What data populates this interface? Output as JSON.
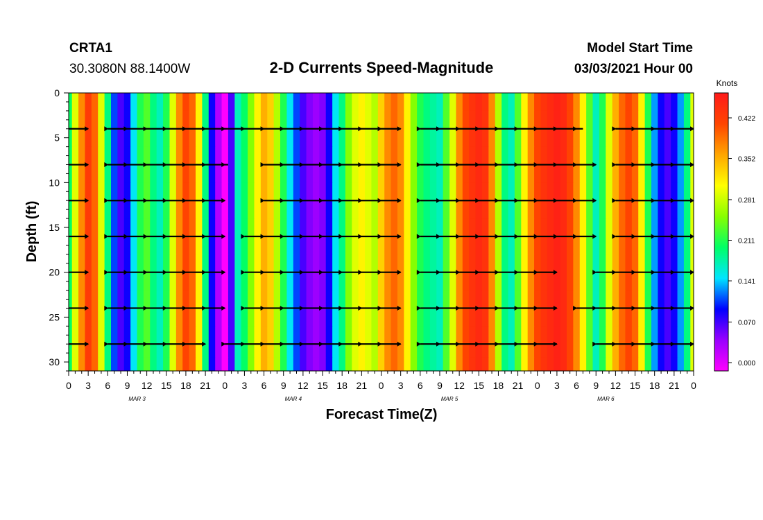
{
  "header": {
    "station": "CRTA1",
    "coords": "30.3080N 88.1400W",
    "title": "2-D Currents Speed-Magnitude",
    "model_label": "Model Start Time",
    "model_time": "03/03/2021 Hour 00"
  },
  "chart_data": {
    "type": "heatmap",
    "title": "2-D Currents Speed-Magnitude",
    "xlabel": "Forecast Time(Z)",
    "ylabel": "Depth (ft)",
    "x_tick_labels": [
      "0",
      "3",
      "6",
      "9",
      "12",
      "15",
      "18",
      "21",
      "0",
      "3",
      "6",
      "9",
      "12",
      "15",
      "18",
      "21",
      "0",
      "3",
      "6",
      "9",
      "12",
      "15",
      "18",
      "21",
      "0",
      "3",
      "6",
      "9",
      "12",
      "15",
      "18",
      "21",
      "0"
    ],
    "x_range_hours": [
      0,
      96
    ],
    "date_labels": [
      "MAR 3",
      "MAR 4",
      "MAR 5",
      "MAR 6"
    ],
    "y_ticks": [
      0,
      5,
      10,
      15,
      20,
      25,
      30
    ],
    "y_range": [
      0,
      31
    ],
    "y_inverted": true,
    "colorbar": {
      "unit": "Knots",
      "tick_labels": [
        "0.422",
        "0.352",
        "0.281",
        "0.211",
        "0.141",
        "0.070",
        "0.000"
      ],
      "range": [
        0,
        0.47
      ],
      "colors": [
        "#ff00ff",
        "#9900ff",
        "#0000ff",
        "#00e5ff",
        "#00ff66",
        "#88ff00",
        "#ffff00",
        "#ffa500",
        "#ff4500",
        "#ff1a1a"
      ]
    },
    "vector_depths_ft": [
      4,
      8,
      12,
      16,
      20,
      24,
      28
    ],
    "speed_field_knots": {
      "times_hr": [
        0,
        1,
        2,
        3,
        4,
        5,
        6,
        7,
        8,
        9,
        10,
        11,
        12,
        13,
        14,
        15,
        16,
        17,
        18,
        19,
        20,
        21,
        22,
        23,
        24,
        25,
        26,
        27,
        28,
        29,
        30,
        31,
        32,
        33,
        34,
        35,
        36,
        37,
        38,
        39,
        40,
        41,
        42,
        43,
        44,
        45,
        46,
        47,
        48,
        49,
        50,
        51,
        52,
        53,
        54,
        55,
        56,
        57,
        58,
        59,
        60,
        61,
        62,
        63,
        64,
        65,
        66,
        67,
        68,
        69,
        70,
        71,
        72,
        73,
        74,
        75,
        76,
        77,
        78,
        79,
        80,
        81,
        82,
        83,
        84,
        85,
        86,
        87,
        88,
        89,
        90,
        91,
        92,
        93,
        94,
        95,
        96
      ],
      "depths_ft": [
        0,
        4,
        8,
        12,
        16,
        20,
        24,
        28,
        31
      ],
      "rows": [
        [
          0.21,
          0.3,
          0.38,
          0.43,
          0.4,
          0.3,
          0.2,
          0.12,
          0.08,
          0.1,
          0.16,
          0.22,
          0.24,
          0.2,
          0.18,
          0.22,
          0.3,
          0.38,
          0.42,
          0.4,
          0.32,
          0.2,
          0.1,
          0.04,
          0.0,
          0.08,
          0.18,
          0.21,
          0.26,
          0.32,
          0.36,
          0.34,
          0.28,
          0.22,
          0.16,
          0.12,
          0.08,
          0.06,
          0.05,
          0.06,
          0.1,
          0.16,
          0.2,
          0.26,
          0.3,
          0.32,
          0.3,
          0.28,
          0.34,
          0.38,
          0.4,
          0.38,
          0.32,
          0.26,
          0.22,
          0.2,
          0.19,
          0.18,
          0.24,
          0.3,
          0.38,
          0.42,
          0.44,
          0.45,
          0.44,
          0.38,
          0.28,
          0.2,
          0.18,
          0.24,
          0.32,
          0.38,
          0.42,
          0.44,
          0.45,
          0.46,
          0.45,
          0.42,
          0.38,
          0.32,
          0.24,
          0.18,
          0.22,
          0.3,
          0.36,
          0.4,
          0.42,
          0.4,
          0.32,
          0.22,
          0.14,
          0.1,
          0.08,
          0.1,
          0.14,
          0.2,
          0.3
        ],
        [
          0.21,
          0.3,
          0.38,
          0.43,
          0.4,
          0.3,
          0.2,
          0.12,
          0.08,
          0.1,
          0.16,
          0.22,
          0.24,
          0.2,
          0.18,
          0.22,
          0.3,
          0.38,
          0.42,
          0.4,
          0.32,
          0.2,
          0.1,
          0.04,
          0.0,
          0.08,
          0.18,
          0.21,
          0.26,
          0.32,
          0.36,
          0.34,
          0.28,
          0.22,
          0.16,
          0.12,
          0.08,
          0.06,
          0.05,
          0.06,
          0.1,
          0.16,
          0.2,
          0.26,
          0.3,
          0.32,
          0.3,
          0.28,
          0.34,
          0.38,
          0.4,
          0.38,
          0.32,
          0.26,
          0.22,
          0.2,
          0.19,
          0.18,
          0.24,
          0.3,
          0.38,
          0.42,
          0.44,
          0.45,
          0.44,
          0.38,
          0.28,
          0.2,
          0.18,
          0.24,
          0.32,
          0.38,
          0.42,
          0.44,
          0.45,
          0.46,
          0.45,
          0.42,
          0.38,
          0.32,
          0.24,
          0.18,
          0.22,
          0.3,
          0.36,
          0.4,
          0.42,
          0.4,
          0.32,
          0.22,
          0.14,
          0.1,
          0.08,
          0.1,
          0.14,
          0.2,
          0.3
        ],
        [
          0.21,
          0.3,
          0.38,
          0.43,
          0.4,
          0.3,
          0.2,
          0.12,
          0.08,
          0.1,
          0.16,
          0.22,
          0.24,
          0.2,
          0.18,
          0.22,
          0.3,
          0.38,
          0.42,
          0.4,
          0.32,
          0.2,
          0.1,
          0.04,
          0.0,
          0.08,
          0.18,
          0.21,
          0.26,
          0.32,
          0.36,
          0.34,
          0.28,
          0.22,
          0.16,
          0.12,
          0.08,
          0.06,
          0.05,
          0.06,
          0.1,
          0.16,
          0.2,
          0.26,
          0.3,
          0.32,
          0.3,
          0.28,
          0.34,
          0.38,
          0.4,
          0.38,
          0.32,
          0.26,
          0.22,
          0.2,
          0.19,
          0.18,
          0.24,
          0.3,
          0.38,
          0.42,
          0.44,
          0.45,
          0.44,
          0.38,
          0.28,
          0.2,
          0.18,
          0.24,
          0.32,
          0.38,
          0.42,
          0.44,
          0.45,
          0.46,
          0.45,
          0.42,
          0.38,
          0.32,
          0.24,
          0.18,
          0.22,
          0.3,
          0.36,
          0.4,
          0.42,
          0.4,
          0.32,
          0.22,
          0.14,
          0.1,
          0.08,
          0.1,
          0.14,
          0.2,
          0.3
        ],
        [
          0.21,
          0.3,
          0.38,
          0.43,
          0.4,
          0.3,
          0.2,
          0.12,
          0.08,
          0.1,
          0.16,
          0.22,
          0.24,
          0.2,
          0.18,
          0.22,
          0.3,
          0.38,
          0.42,
          0.4,
          0.32,
          0.2,
          0.1,
          0.04,
          0.0,
          0.08,
          0.18,
          0.21,
          0.26,
          0.32,
          0.36,
          0.34,
          0.28,
          0.22,
          0.16,
          0.12,
          0.08,
          0.06,
          0.05,
          0.06,
          0.1,
          0.16,
          0.2,
          0.26,
          0.3,
          0.32,
          0.3,
          0.28,
          0.34,
          0.38,
          0.4,
          0.38,
          0.32,
          0.26,
          0.22,
          0.2,
          0.19,
          0.18,
          0.24,
          0.3,
          0.38,
          0.42,
          0.44,
          0.45,
          0.44,
          0.38,
          0.28,
          0.2,
          0.18,
          0.24,
          0.32,
          0.38,
          0.42,
          0.44,
          0.45,
          0.46,
          0.45,
          0.42,
          0.38,
          0.32,
          0.24,
          0.18,
          0.22,
          0.3,
          0.36,
          0.4,
          0.42,
          0.4,
          0.32,
          0.22,
          0.14,
          0.1,
          0.08,
          0.1,
          0.14,
          0.2,
          0.3
        ],
        [
          0.21,
          0.3,
          0.38,
          0.43,
          0.4,
          0.3,
          0.2,
          0.12,
          0.08,
          0.1,
          0.16,
          0.22,
          0.24,
          0.2,
          0.18,
          0.22,
          0.3,
          0.38,
          0.42,
          0.4,
          0.32,
          0.2,
          0.1,
          0.04,
          0.0,
          0.08,
          0.18,
          0.21,
          0.26,
          0.32,
          0.36,
          0.34,
          0.28,
          0.22,
          0.16,
          0.12,
          0.08,
          0.06,
          0.05,
          0.06,
          0.1,
          0.16,
          0.2,
          0.26,
          0.3,
          0.32,
          0.3,
          0.28,
          0.34,
          0.38,
          0.4,
          0.38,
          0.32,
          0.26,
          0.22,
          0.2,
          0.19,
          0.18,
          0.24,
          0.3,
          0.38,
          0.42,
          0.44,
          0.45,
          0.44,
          0.38,
          0.28,
          0.2,
          0.18,
          0.24,
          0.32,
          0.38,
          0.42,
          0.44,
          0.45,
          0.46,
          0.45,
          0.42,
          0.38,
          0.32,
          0.24,
          0.18,
          0.22,
          0.3,
          0.36,
          0.4,
          0.42,
          0.4,
          0.32,
          0.22,
          0.14,
          0.1,
          0.08,
          0.1,
          0.14,
          0.2,
          0.3
        ],
        [
          0.21,
          0.3,
          0.38,
          0.43,
          0.4,
          0.3,
          0.2,
          0.12,
          0.08,
          0.1,
          0.16,
          0.22,
          0.24,
          0.2,
          0.18,
          0.22,
          0.3,
          0.38,
          0.42,
          0.4,
          0.32,
          0.2,
          0.1,
          0.04,
          0.0,
          0.08,
          0.18,
          0.21,
          0.26,
          0.32,
          0.36,
          0.34,
          0.28,
          0.22,
          0.16,
          0.12,
          0.08,
          0.06,
          0.05,
          0.06,
          0.1,
          0.16,
          0.2,
          0.26,
          0.3,
          0.32,
          0.3,
          0.28,
          0.34,
          0.38,
          0.4,
          0.38,
          0.32,
          0.26,
          0.22,
          0.2,
          0.19,
          0.18,
          0.24,
          0.3,
          0.38,
          0.42,
          0.44,
          0.45,
          0.44,
          0.38,
          0.28,
          0.2,
          0.18,
          0.24,
          0.32,
          0.38,
          0.42,
          0.44,
          0.45,
          0.46,
          0.45,
          0.42,
          0.38,
          0.32,
          0.24,
          0.18,
          0.22,
          0.3,
          0.36,
          0.4,
          0.42,
          0.4,
          0.32,
          0.22,
          0.14,
          0.1,
          0.08,
          0.1,
          0.14,
          0.2,
          0.3
        ],
        [
          0.21,
          0.3,
          0.38,
          0.43,
          0.4,
          0.3,
          0.2,
          0.12,
          0.08,
          0.1,
          0.16,
          0.22,
          0.24,
          0.2,
          0.18,
          0.22,
          0.3,
          0.38,
          0.42,
          0.4,
          0.32,
          0.2,
          0.1,
          0.04,
          0.0,
          0.08,
          0.18,
          0.21,
          0.26,
          0.32,
          0.36,
          0.34,
          0.28,
          0.22,
          0.16,
          0.12,
          0.08,
          0.06,
          0.05,
          0.06,
          0.1,
          0.16,
          0.2,
          0.26,
          0.3,
          0.32,
          0.3,
          0.28,
          0.34,
          0.38,
          0.4,
          0.38,
          0.32,
          0.26,
          0.22,
          0.2,
          0.19,
          0.18,
          0.24,
          0.3,
          0.38,
          0.42,
          0.44,
          0.45,
          0.44,
          0.38,
          0.28,
          0.2,
          0.18,
          0.24,
          0.32,
          0.38,
          0.42,
          0.44,
          0.45,
          0.46,
          0.45,
          0.42,
          0.38,
          0.32,
          0.24,
          0.18,
          0.22,
          0.3,
          0.36,
          0.4,
          0.42,
          0.4,
          0.32,
          0.22,
          0.14,
          0.1,
          0.08,
          0.1,
          0.14,
          0.2,
          0.3
        ],
        [
          0.21,
          0.3,
          0.38,
          0.43,
          0.4,
          0.3,
          0.2,
          0.12,
          0.08,
          0.1,
          0.16,
          0.22,
          0.24,
          0.2,
          0.18,
          0.22,
          0.3,
          0.38,
          0.42,
          0.4,
          0.32,
          0.2,
          0.1,
          0.04,
          0.0,
          0.08,
          0.18,
          0.21,
          0.26,
          0.32,
          0.36,
          0.34,
          0.28,
          0.22,
          0.16,
          0.12,
          0.08,
          0.06,
          0.05,
          0.06,
          0.1,
          0.16,
          0.2,
          0.26,
          0.3,
          0.32,
          0.3,
          0.28,
          0.34,
          0.38,
          0.4,
          0.38,
          0.32,
          0.26,
          0.22,
          0.2,
          0.19,
          0.18,
          0.24,
          0.3,
          0.38,
          0.42,
          0.44,
          0.45,
          0.44,
          0.38,
          0.28,
          0.2,
          0.18,
          0.24,
          0.32,
          0.38,
          0.42,
          0.44,
          0.45,
          0.46,
          0.45,
          0.42,
          0.38,
          0.32,
          0.24,
          0.18,
          0.22,
          0.3,
          0.36,
          0.4,
          0.42,
          0.4,
          0.32,
          0.22,
          0.14,
          0.1,
          0.08,
          0.1,
          0.14,
          0.2,
          0.3
        ],
        [
          0.21,
          0.3,
          0.38,
          0.43,
          0.4,
          0.3,
          0.2,
          0.12,
          0.08,
          0.1,
          0.16,
          0.22,
          0.24,
          0.2,
          0.18,
          0.22,
          0.3,
          0.38,
          0.42,
          0.4,
          0.32,
          0.2,
          0.1,
          0.04,
          0.0,
          0.08,
          0.18,
          0.21,
          0.26,
          0.32,
          0.36,
          0.34,
          0.28,
          0.22,
          0.16,
          0.12,
          0.08,
          0.06,
          0.05,
          0.06,
          0.1,
          0.16,
          0.2,
          0.26,
          0.3,
          0.32,
          0.3,
          0.28,
          0.34,
          0.38,
          0.4,
          0.38,
          0.32,
          0.26,
          0.22,
          0.2,
          0.19,
          0.18,
          0.24,
          0.3,
          0.38,
          0.42,
          0.44,
          0.45,
          0.44,
          0.38,
          0.28,
          0.2,
          0.18,
          0.24,
          0.32,
          0.38,
          0.42,
          0.44,
          0.45,
          0.46,
          0.45,
          0.42,
          0.38,
          0.32,
          0.24,
          0.18,
          0.22,
          0.3,
          0.36,
          0.4,
          0.42,
          0.4,
          0.32,
          0.22,
          0.14,
          0.1,
          0.08,
          0.1,
          0.14,
          0.2,
          0.3
        ]
      ]
    },
    "vector_segments": [
      {
        "depth": 4,
        "spans": [
          [
            0,
            3
          ],
          [
            6,
            24.5
          ],
          [
            24.5,
            51
          ],
          [
            54,
            79
          ],
          [
            84,
            96
          ]
        ]
      },
      {
        "depth": 8,
        "spans": [
          [
            0,
            3
          ],
          [
            6,
            24.5
          ],
          [
            30,
            51
          ],
          [
            54,
            81
          ],
          [
            84,
            96
          ]
        ]
      },
      {
        "depth": 12,
        "spans": [
          [
            0,
            3
          ],
          [
            6,
            24
          ],
          [
            30,
            51
          ],
          [
            54,
            81
          ],
          [
            84,
            96
          ]
        ]
      },
      {
        "depth": 16,
        "spans": [
          [
            0,
            3
          ],
          [
            6,
            24
          ],
          [
            27,
            51
          ],
          [
            54,
            81
          ],
          [
            84,
            96
          ]
        ]
      },
      {
        "depth": 20,
        "spans": [
          [
            0,
            3
          ],
          [
            6,
            24
          ],
          [
            27,
            51
          ],
          [
            54,
            75
          ],
          [
            81,
            96
          ]
        ]
      },
      {
        "depth": 24,
        "spans": [
          [
            0,
            3
          ],
          [
            6,
            24
          ],
          [
            27,
            51
          ],
          [
            54,
            75
          ],
          [
            78,
            96
          ]
        ]
      },
      {
        "depth": 28,
        "spans": [
          [
            0,
            3
          ],
          [
            6,
            21
          ],
          [
            24,
            51
          ],
          [
            54,
            75
          ],
          [
            81,
            96
          ]
        ]
      }
    ]
  }
}
